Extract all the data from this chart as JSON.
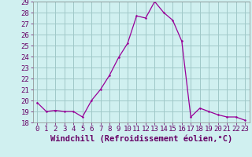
{
  "x": [
    0,
    1,
    2,
    3,
    4,
    5,
    6,
    7,
    8,
    9,
    10,
    11,
    12,
    13,
    14,
    15,
    16,
    17,
    18,
    19,
    20,
    21,
    22,
    23
  ],
  "y": [
    19.8,
    19.0,
    19.1,
    19.0,
    19.0,
    18.5,
    20.0,
    21.0,
    22.3,
    23.9,
    25.2,
    27.7,
    27.5,
    29.0,
    28.0,
    27.3,
    25.4,
    18.5,
    19.3,
    19.0,
    18.7,
    18.5,
    18.5,
    18.2
  ],
  "xlabel": "Windchill (Refroidissement éolien,°C)",
  "ylim": [
    18,
    29
  ],
  "xlim": [
    -0.5,
    23.5
  ],
  "yticks": [
    18,
    19,
    20,
    21,
    22,
    23,
    24,
    25,
    26,
    27,
    28,
    29
  ],
  "xticks": [
    0,
    1,
    2,
    3,
    4,
    5,
    6,
    7,
    8,
    9,
    10,
    11,
    12,
    13,
    14,
    15,
    16,
    17,
    18,
    19,
    20,
    21,
    22,
    23
  ],
  "line_color": "#990099",
  "marker_color": "#990099",
  "bg_color": "#d0f0f0",
  "grid_color": "#a0c8c8",
  "tick_label_fontsize": 6.5,
  "xlabel_fontsize": 7.5,
  "marker_size": 2.5,
  "line_width": 0.9
}
